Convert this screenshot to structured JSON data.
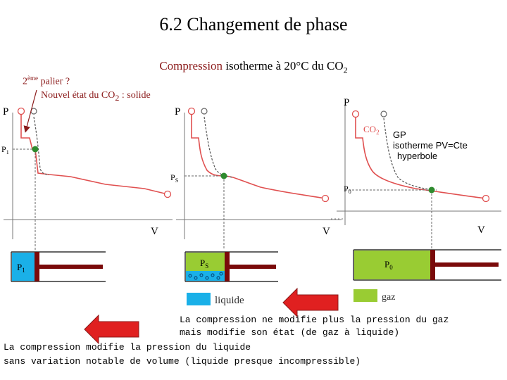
{
  "title": "6.2   Changement de phase",
  "subtitle": {
    "part1": "Compression",
    "part2": " isotherme à 20°C du CO",
    "sub": "2"
  },
  "note1": {
    "pre": "2",
    "sup": "ème",
    "post": " palier ?"
  },
  "note2": {
    "pre": "Nouvel état du CO",
    "sub": "2",
    "post": " : solide"
  },
  "graph1": {
    "p_label": "P",
    "v_label": "V",
    "p1_label": "P",
    "p1_sub": "1"
  },
  "graph2": {
    "p_label": "P",
    "v_label": "V",
    "ps_label": "P",
    "ps_sub": "S"
  },
  "graph3": {
    "p_label": "P",
    "v_label": "V",
    "p0_label": "P",
    "p0_sub": "0",
    "co2_label": "CO",
    "co2_sub": "2"
  },
  "gp_note": {
    "line1": "GP",
    "line2": "isotherme PV=Cte",
    "line3": "hyperbole"
  },
  "piston1": {
    "label": "P",
    "sub": "1"
  },
  "piston2": {
    "label": "P",
    "sub": "S"
  },
  "piston3": {
    "label": "P",
    "sub": "0"
  },
  "legend": {
    "liquid": "liquide",
    "gas": "gaz"
  },
  "text_gas": {
    "line1": "La compression ne modifie plus la pression du gaz",
    "line2": "mais modifie son état (de gaz à liquide)"
  },
  "text_liquid": {
    "line1": "La compression modifie la pression du liquide",
    "line2": "sans variation notable de volume (liquide presque incompressible)"
  },
  "colors": {
    "curve": "#e05050",
    "dash": "#555555",
    "point": "#2e8b2e",
    "liquid": "#1ab0e8",
    "gas": "#99cc33",
    "piston": "#7a0a0a",
    "arrow": "#e02020",
    "annotation": "#8b1a1a"
  }
}
